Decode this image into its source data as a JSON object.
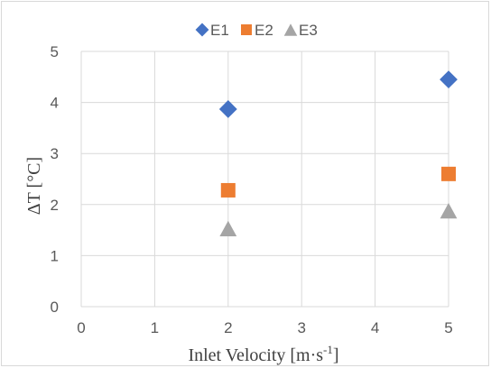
{
  "chart_data": {
    "type": "scatter",
    "xlabel": "Inlet Velocity [m·s",
    "xlabel_sup": "-1",
    "xlabel_end": "]",
    "ylabel": "ΔT [°C]",
    "xlim": [
      0,
      5
    ],
    "ylim": [
      0,
      5
    ],
    "xticks": [
      "0",
      "1",
      "2",
      "3",
      "4",
      "5"
    ],
    "yticks": [
      "0",
      "1",
      "2",
      "3",
      "4",
      "5"
    ],
    "grid": true,
    "legend_position": "top",
    "series": [
      {
        "name": "E1",
        "marker": "diamond",
        "color": "#4472c4",
        "x": [
          2,
          5
        ],
        "y": [
          3.87,
          4.45
        ]
      },
      {
        "name": "E2",
        "marker": "square",
        "color": "#ed7d31",
        "x": [
          2,
          5
        ],
        "y": [
          2.28,
          2.6
        ]
      },
      {
        "name": "E3",
        "marker": "triangle",
        "color": "#a5a5a5",
        "x": [
          2,
          5
        ],
        "y": [
          1.53,
          1.88
        ]
      }
    ]
  }
}
